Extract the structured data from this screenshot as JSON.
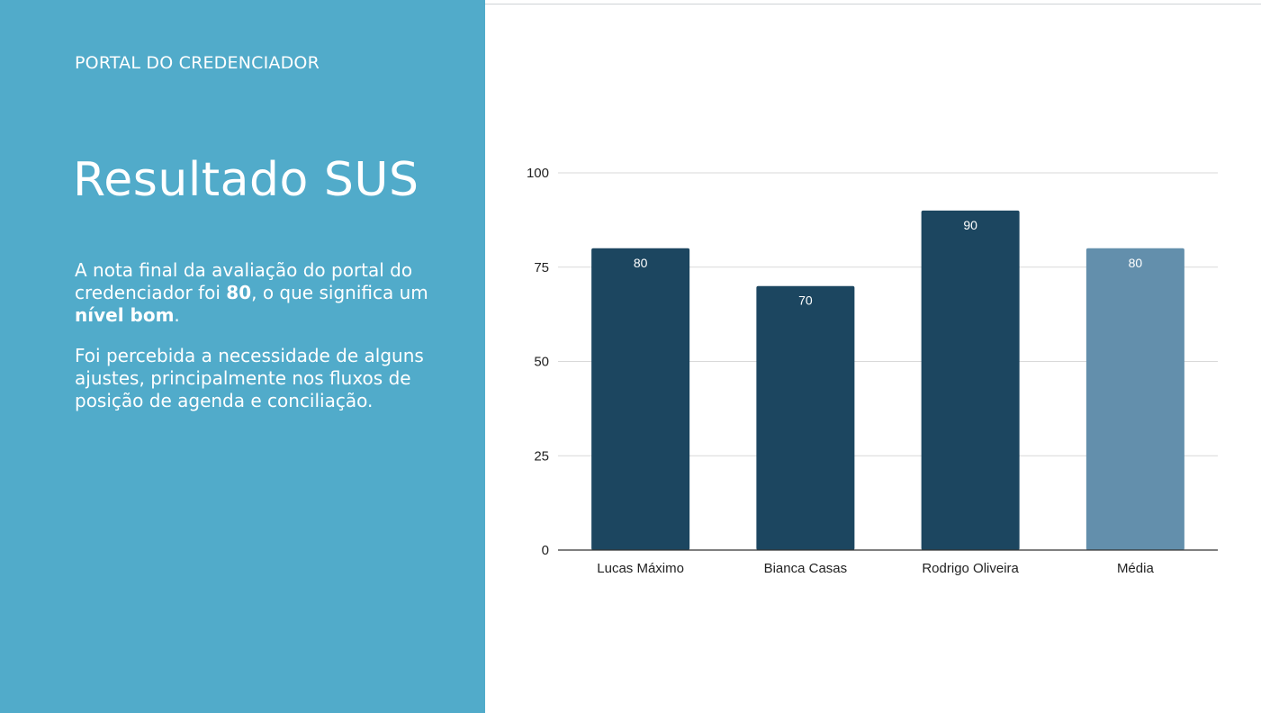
{
  "slide": {
    "eyebrow": "PORTAL DO CREDENCIADOR",
    "title": "Resultado SUS",
    "paragraph1": {
      "part1": "A nota final da avaliação do portal  do credenciador foi ",
      "bold1": "80",
      "part2": ", o que significa um ",
      "bold2": "nível bom",
      "part3": "."
    },
    "paragraph2": "Foi percebida a necessidade de alguns ajustes, principalmente nos fluxos de posição de agenda e conciliação."
  },
  "colors": {
    "panel": "#51abca",
    "bar_dark": "#1c4660",
    "bar_light": "#638fac",
    "gridline": "#d9d9d9",
    "axis": "#333333"
  },
  "chart_data": {
    "type": "bar",
    "title": "",
    "xlabel": "",
    "ylabel": "",
    "categories": [
      "Lucas Máximo",
      "Bianca Casas",
      "Rodrigo Oliveira",
      "Média"
    ],
    "values": [
      80,
      70,
      90,
      80
    ],
    "data_labels": [
      "80",
      "70",
      "90",
      "80"
    ],
    "bar_colors": [
      "#1c4660",
      "#1c4660",
      "#1c4660",
      "#638fac"
    ],
    "ylim": [
      0,
      100
    ],
    "yticks": [
      0,
      25,
      50,
      75,
      100
    ],
    "grid": true,
    "legend": "none"
  }
}
